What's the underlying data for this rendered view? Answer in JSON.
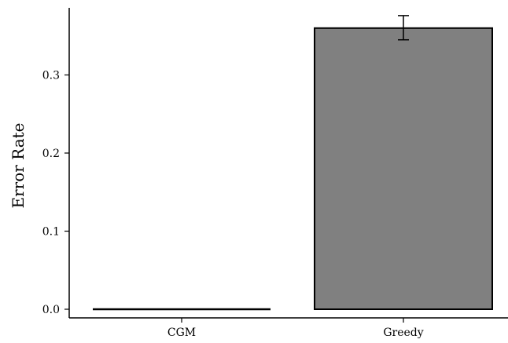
{
  "chart_data": {
    "type": "bar",
    "categories": [
      "CGM",
      "Greedy"
    ],
    "values": [
      0.0,
      0.36
    ],
    "error_bars": [
      {
        "low": 0.0,
        "high": 0.0
      },
      {
        "low": 0.345,
        "high": 0.376
      }
    ],
    "title": "",
    "xlabel": "",
    "ylabel": "Error Rate",
    "ylim": [
      -0.012,
      0.388
    ],
    "yticks": [
      0.0,
      0.1,
      0.2,
      0.3
    ],
    "ytick_labels": [
      "0.0",
      "0.1",
      "0.2",
      "0.3"
    ],
    "grid": false,
    "legend": "none",
    "bar_color": "#808080",
    "edge_color": "#000000"
  }
}
